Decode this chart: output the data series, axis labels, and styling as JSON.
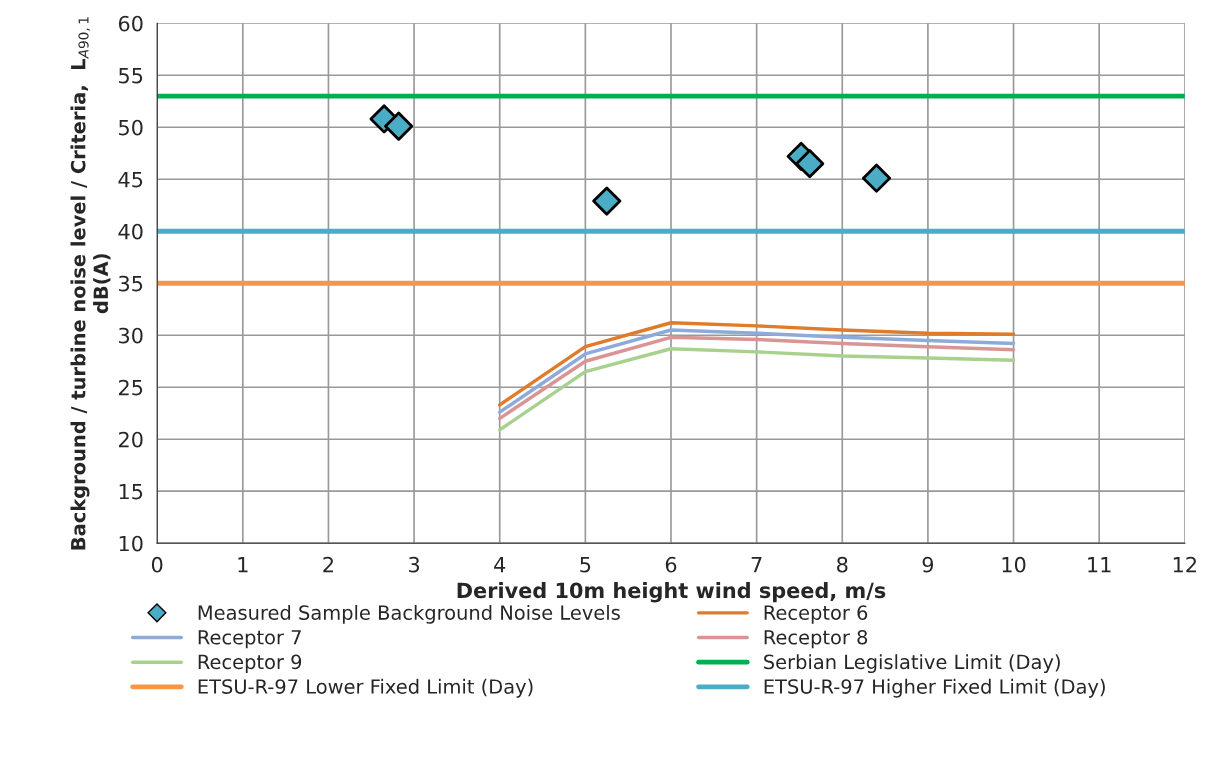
{
  "chart_data": {
    "type": "line",
    "xlabel": "Derived 10m height wind speed, m/s",
    "ylabel": "Background / turbine noise level / Criteria,  L$_{A90,1}$\ndB(A)",
    "xlim": [
      0,
      12
    ],
    "xticks": [
      0,
      1,
      2,
      3,
      4,
      5,
      6,
      7,
      8,
      9,
      10,
      11,
      12
    ],
    "ylim": [
      10,
      60
    ],
    "yticks": [
      10,
      15,
      20,
      25,
      30,
      35,
      40,
      45,
      50,
      55,
      60
    ],
    "grid": true,
    "legend": "bottom",
    "series": [
      {
        "name": "Measured Sample Background Noise Levels",
        "type": "scatter",
        "marker": "diamond",
        "color": "#4bacc6",
        "x": [
          2.65,
          2.82,
          5.25,
          7.52,
          7.62,
          8.4
        ],
        "values": [
          50.8,
          50.1,
          42.9,
          47.2,
          46.5,
          45.1
        ]
      },
      {
        "name": "Receptor 6",
        "color": "#e07b2a",
        "x": [
          4,
          5,
          6,
          7,
          8,
          9,
          10
        ],
        "values": [
          23.3,
          28.9,
          31.2,
          30.9,
          30.5,
          30.2,
          30.1
        ]
      },
      {
        "name": "Receptor 7",
        "color": "#8eaadb",
        "x": [
          4,
          5,
          6,
          7,
          8,
          9,
          10
        ],
        "values": [
          22.6,
          28.2,
          30.5,
          30.2,
          29.8,
          29.5,
          29.2
        ]
      },
      {
        "name": "Receptor 8",
        "color": "#d99594",
        "x": [
          4,
          5,
          6,
          7,
          8,
          9,
          10
        ],
        "values": [
          22.0,
          27.5,
          29.8,
          29.6,
          29.2,
          28.9,
          28.6
        ]
      },
      {
        "name": "Receptor 9",
        "color": "#a9d18e",
        "x": [
          4,
          5,
          6,
          7,
          8,
          9,
          10
        ],
        "values": [
          20.9,
          26.5,
          28.7,
          28.4,
          28.0,
          27.8,
          27.6
        ]
      }
    ],
    "ref_lines": [
      {
        "axis": "y",
        "value": 53,
        "label": "Serbian Legislative Limit (Day)",
        "color": "#00b050"
      },
      {
        "axis": "y",
        "value": 35,
        "label": "ETSU-R-97 Lower Fixed Limit (Day)",
        "color": "#f79646"
      },
      {
        "axis": "y",
        "value": 40,
        "label": "ETSU-R-97 Higher Fixed Limit (Day)",
        "color": "#4bacc6"
      }
    ]
  }
}
